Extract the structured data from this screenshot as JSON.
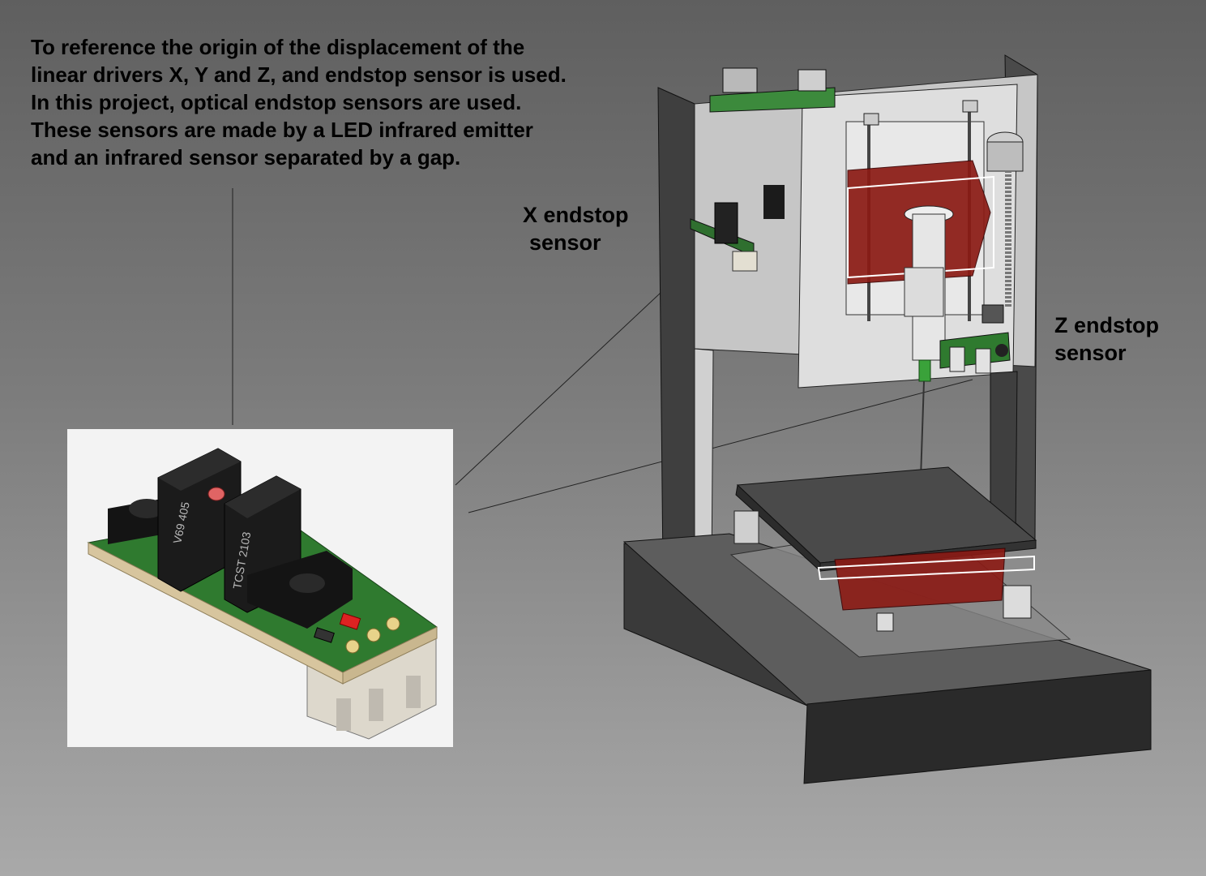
{
  "description_lines": [
    "To reference the origin of the displacement of the",
    "linear drivers X, Y and Z, and endstop sensor is used.",
    "In this project, optical endstop sensors are used.",
    "These sensors are made by a LED infrared emitter",
    "and an infrared sensor separated by a gap."
  ],
  "x_callout": {
    "line1": "X endstop",
    "line2": "sensor"
  },
  "z_callout": {
    "line1": "Z endstop",
    "line2": "sensor"
  },
  "sensor_photo": {
    "marking_left": "V69 405",
    "marking_right": "TCST 2103"
  },
  "colors": {
    "pcb_green": "#2f7a2f",
    "sensor_black": "#1b1b1b",
    "connector": "#ddd8cc",
    "motor_red": "#8b1a14",
    "plate_gray": "#d9d9d9",
    "base_dark": "#3c3c3c"
  }
}
